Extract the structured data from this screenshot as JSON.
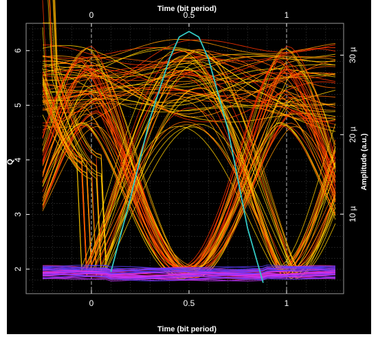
{
  "chart_data": {
    "type": "line",
    "title": "",
    "xlabel_top": "Time (bit period)",
    "xlabel_bottom": "Time (bit period)",
    "ylabel_left": "Q",
    "ylabel_right": "Amplitude (a.u.)",
    "x_ticks_top": [
      "0",
      "0.5",
      "1"
    ],
    "x_ticks_bottom": [
      "0",
      "0.5",
      "1"
    ],
    "y_ticks_left": [
      "2",
      "3",
      "4",
      "5",
      "6"
    ],
    "y_ticks_right": [
      "10 µ",
      "20 µ",
      "30 µ"
    ],
    "xlim": [
      -0.25,
      1.25
    ],
    "ylim_left": [
      1.55,
      6.5
    ],
    "ylim_right": [
      0,
      34
    ],
    "grid": true,
    "background": "#000000",
    "eye_diagram": {
      "one_level_range": [
        4.6,
        6.1
      ],
      "zero_level_range": [
        1.82,
        2.05
      ],
      "crossing_times": [
        0.0,
        1.0
      ],
      "trace_colors": [
        "#ffcc00",
        "#ff9900",
        "#ff6600",
        "#ff3300"
      ],
      "dense_zero_colors": [
        "#ff2d8a",
        "#c533ff",
        "#5a3cff"
      ]
    },
    "series": [
      {
        "name": "",
        "axis": "left",
        "color": "#33c9c4",
        "x": [
          0.1,
          0.2,
          0.3,
          0.4,
          0.45,
          0.5,
          0.55,
          0.6,
          0.7,
          0.8,
          0.88
        ],
        "y": [
          1.95,
          3.3,
          4.75,
          5.85,
          6.25,
          6.35,
          6.25,
          5.85,
          4.55,
          2.75,
          1.75
        ]
      }
    ]
  }
}
